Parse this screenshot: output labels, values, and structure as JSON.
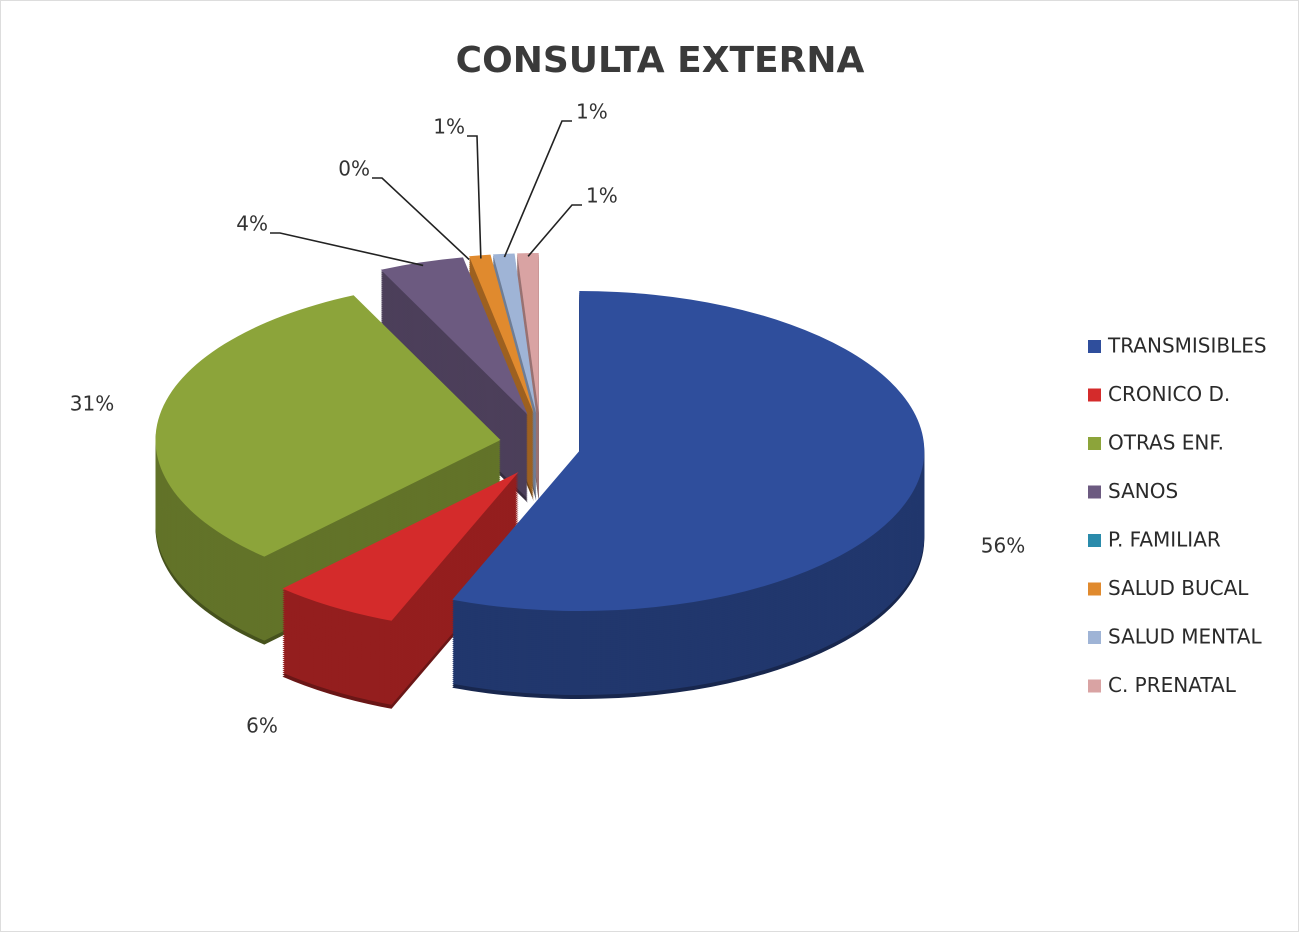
{
  "chart_data": {
    "type": "pie",
    "title": "CONSULTA EXTERNA",
    "categories": [
      "TRANSMISIBLES",
      "CRONICO D.",
      "OTRAS ENF.",
      "SANOS",
      "P. FAMILIAR",
      "SALUD BUCAL",
      "SALUD MENTAL",
      "C. PRENATAL"
    ],
    "values": [
      56,
      6,
      31,
      4,
      0,
      1,
      1,
      1
    ],
    "value_labels": [
      "56%",
      "6%",
      "31%",
      "4%",
      "0%",
      "1%",
      "1%",
      "1%"
    ],
    "colors": [
      "#2f4e9c",
      "#d42b2b",
      "#8ca43a",
      "#6c5a80",
      "#2a8bab",
      "#e08a2e",
      "#9fb4d6",
      "#d9a3a3"
    ],
    "legend": "right"
  }
}
